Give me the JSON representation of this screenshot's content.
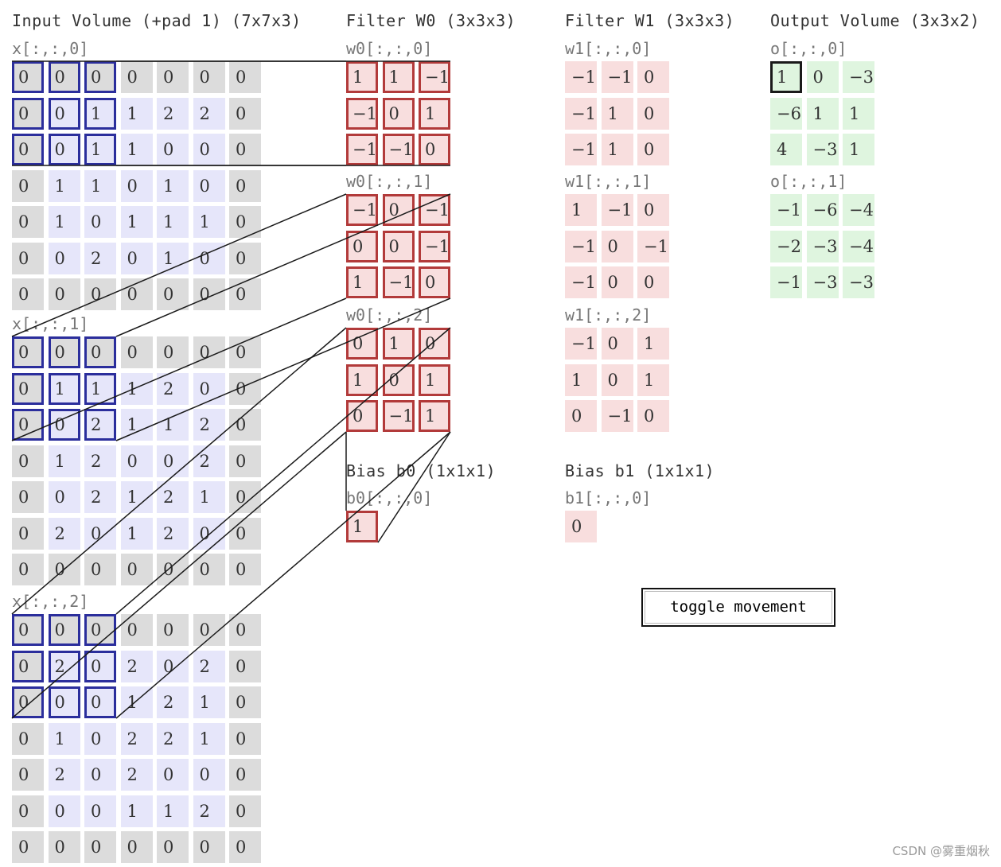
{
  "titles": {
    "input": "Input Volume (+pad 1) (7x7x3)",
    "filter0": "Filter W0 (3x3x3)",
    "filter1": "Filter W1 (3x3x3)",
    "output": "Output Volume (3x3x2)",
    "bias0": "Bias b0 (1x1x1)",
    "bias1": "Bias b1 (1x1x1)"
  },
  "input": [
    {
      "label": "x[:,:,0]",
      "rows": [
        [
          0,
          0,
          0,
          0,
          0,
          0,
          0
        ],
        [
          0,
          0,
          1,
          1,
          2,
          2,
          0
        ],
        [
          0,
          0,
          1,
          1,
          0,
          0,
          0
        ],
        [
          0,
          1,
          1,
          0,
          1,
          0,
          0
        ],
        [
          0,
          1,
          0,
          1,
          1,
          1,
          0
        ],
        [
          0,
          0,
          2,
          0,
          1,
          0,
          0
        ],
        [
          0,
          0,
          0,
          0,
          0,
          0,
          0
        ]
      ]
    },
    {
      "label": "x[:,:,1]",
      "rows": [
        [
          0,
          0,
          0,
          0,
          0,
          0,
          0
        ],
        [
          0,
          1,
          1,
          1,
          2,
          0,
          0
        ],
        [
          0,
          0,
          2,
          1,
          1,
          2,
          0
        ],
        [
          0,
          1,
          2,
          0,
          0,
          2,
          0
        ],
        [
          0,
          0,
          2,
          1,
          2,
          1,
          0
        ],
        [
          0,
          2,
          0,
          1,
          2,
          0,
          0
        ],
        [
          0,
          0,
          0,
          0,
          0,
          0,
          0
        ]
      ]
    },
    {
      "label": "x[:,:,2]",
      "rows": [
        [
          0,
          0,
          0,
          0,
          0,
          0,
          0
        ],
        [
          0,
          2,
          0,
          2,
          0,
          2,
          0
        ],
        [
          0,
          0,
          0,
          1,
          2,
          1,
          0
        ],
        [
          0,
          1,
          0,
          2,
          2,
          1,
          0
        ],
        [
          0,
          2,
          0,
          2,
          0,
          0,
          0
        ],
        [
          0,
          0,
          0,
          1,
          1,
          2,
          0
        ],
        [
          0,
          0,
          0,
          0,
          0,
          0,
          0
        ]
      ]
    }
  ],
  "w0": [
    {
      "label": "w0[:,:,0]",
      "rows": [
        [
          1,
          1,
          -1
        ],
        [
          -1,
          0,
          1
        ],
        [
          -1,
          -1,
          0
        ]
      ]
    },
    {
      "label": "w0[:,:,1]",
      "rows": [
        [
          -1,
          0,
          -1
        ],
        [
          0,
          0,
          -1
        ],
        [
          1,
          -1,
          0
        ]
      ]
    },
    {
      "label": "w0[:,:,2]",
      "rows": [
        [
          0,
          1,
          0
        ],
        [
          1,
          0,
          1
        ],
        [
          0,
          -1,
          1
        ]
      ]
    }
  ],
  "w1": [
    {
      "label": "w1[:,:,0]",
      "rows": [
        [
          -1,
          -1,
          0
        ],
        [
          -1,
          1,
          0
        ],
        [
          -1,
          1,
          0
        ]
      ]
    },
    {
      "label": "w1[:,:,1]",
      "rows": [
        [
          1,
          -1,
          0
        ],
        [
          -1,
          0,
          -1
        ],
        [
          -1,
          0,
          0
        ]
      ]
    },
    {
      "label": "w1[:,:,2]",
      "rows": [
        [
          -1,
          0,
          1
        ],
        [
          1,
          0,
          1
        ],
        [
          0,
          -1,
          0
        ]
      ]
    }
  ],
  "bias0": {
    "label": "b0[:,:,0]",
    "value": 1
  },
  "bias1": {
    "label": "b1[:,:,0]",
    "value": 0
  },
  "output": [
    {
      "label": "o[:,:,0]",
      "rows": [
        [
          1,
          0,
          -3
        ],
        [
          -6,
          1,
          1
        ],
        [
          4,
          -3,
          1
        ]
      ]
    },
    {
      "label": "o[:,:,1]",
      "rows": [
        [
          -1,
          -6,
          -4
        ],
        [
          -2,
          -3,
          -4
        ],
        [
          -1,
          -3,
          -3
        ]
      ]
    }
  ],
  "button": {
    "label": "toggle movement"
  },
  "watermark": "CSDN @雾重烟秋",
  "colors": {
    "pad": "#dcdcdc",
    "inner": "#e6e6fa",
    "filter": "#f8dede",
    "output": "#dff5df",
    "highlight_input": "#2b2e9c",
    "highlight_filter": "#b23a3a",
    "highlight_output": "#1a1a1a"
  }
}
